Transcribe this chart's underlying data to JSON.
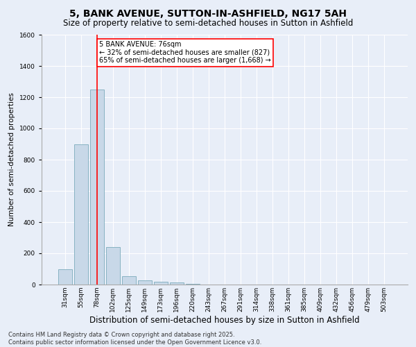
{
  "title1": "5, BANK AVENUE, SUTTON-IN-ASHFIELD, NG17 5AH",
  "title2": "Size of property relative to semi-detached houses in Sutton in Ashfield",
  "xlabel": "Distribution of semi-detached houses by size in Sutton in Ashfield",
  "ylabel": "Number of semi-detached properties",
  "categories": [
    "31sqm",
    "55sqm",
    "78sqm",
    "102sqm",
    "125sqm",
    "149sqm",
    "173sqm",
    "196sqm",
    "220sqm",
    "243sqm",
    "267sqm",
    "291sqm",
    "314sqm",
    "338sqm",
    "361sqm",
    "385sqm",
    "409sqm",
    "432sqm",
    "456sqm",
    "479sqm",
    "503sqm"
  ],
  "values": [
    100,
    900,
    1250,
    240,
    55,
    25,
    20,
    15,
    5,
    2,
    1,
    0,
    0,
    0,
    0,
    0,
    0,
    0,
    0,
    0,
    0
  ],
  "bar_color": "#c8d8e8",
  "bar_edge_color": "#7aaabb",
  "vline_x": 2,
  "vline_color": "red",
  "annotation_text": "5 BANK AVENUE: 76sqm\n← 32% of semi-detached houses are smaller (827)\n65% of semi-detached houses are larger (1,668) →",
  "annotation_box_color": "white",
  "annotation_box_edge": "red",
  "ylim": [
    0,
    1600
  ],
  "yticks": [
    0,
    200,
    400,
    600,
    800,
    1000,
    1200,
    1400,
    1600
  ],
  "background_color": "#e8eef8",
  "grid_color": "white",
  "footer": "Contains HM Land Registry data © Crown copyright and database right 2025.\nContains public sector information licensed under the Open Government Licence v3.0.",
  "title1_fontsize": 10,
  "title2_fontsize": 8.5,
  "xlabel_fontsize": 8.5,
  "ylabel_fontsize": 7.5,
  "tick_fontsize": 6.5,
  "annotation_fontsize": 7,
  "footer_fontsize": 6
}
